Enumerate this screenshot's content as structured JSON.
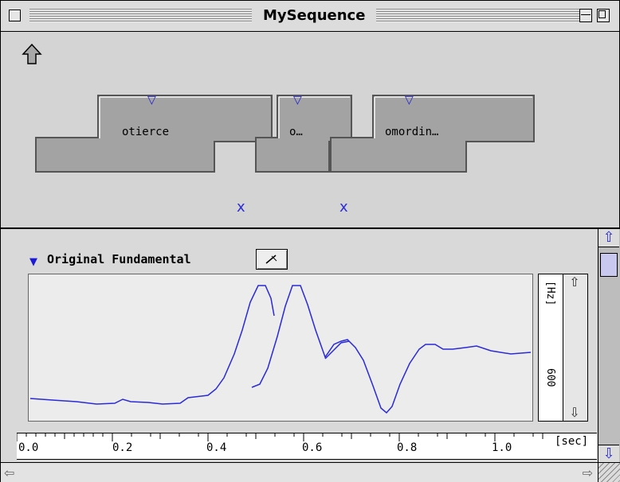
{
  "window": {
    "title": "MySequence"
  },
  "segments": [
    {
      "label": "otierce"
    },
    {
      "label": "o…"
    },
    {
      "label": "omordin…"
    }
  ],
  "markers": [
    "x",
    "x"
  ],
  "track": {
    "name": "Original Fundamental"
  },
  "yaxis": {
    "unit": "[Hz]",
    "tick": "600"
  },
  "xaxis": {
    "unit": "[sec]",
    "ticks": [
      "0.0",
      "0.2",
      "0.4",
      "0.6",
      "0.8",
      "1.0"
    ]
  },
  "colors": {
    "curve": "#2a2ad8",
    "accent": "#1a1ad8"
  }
}
